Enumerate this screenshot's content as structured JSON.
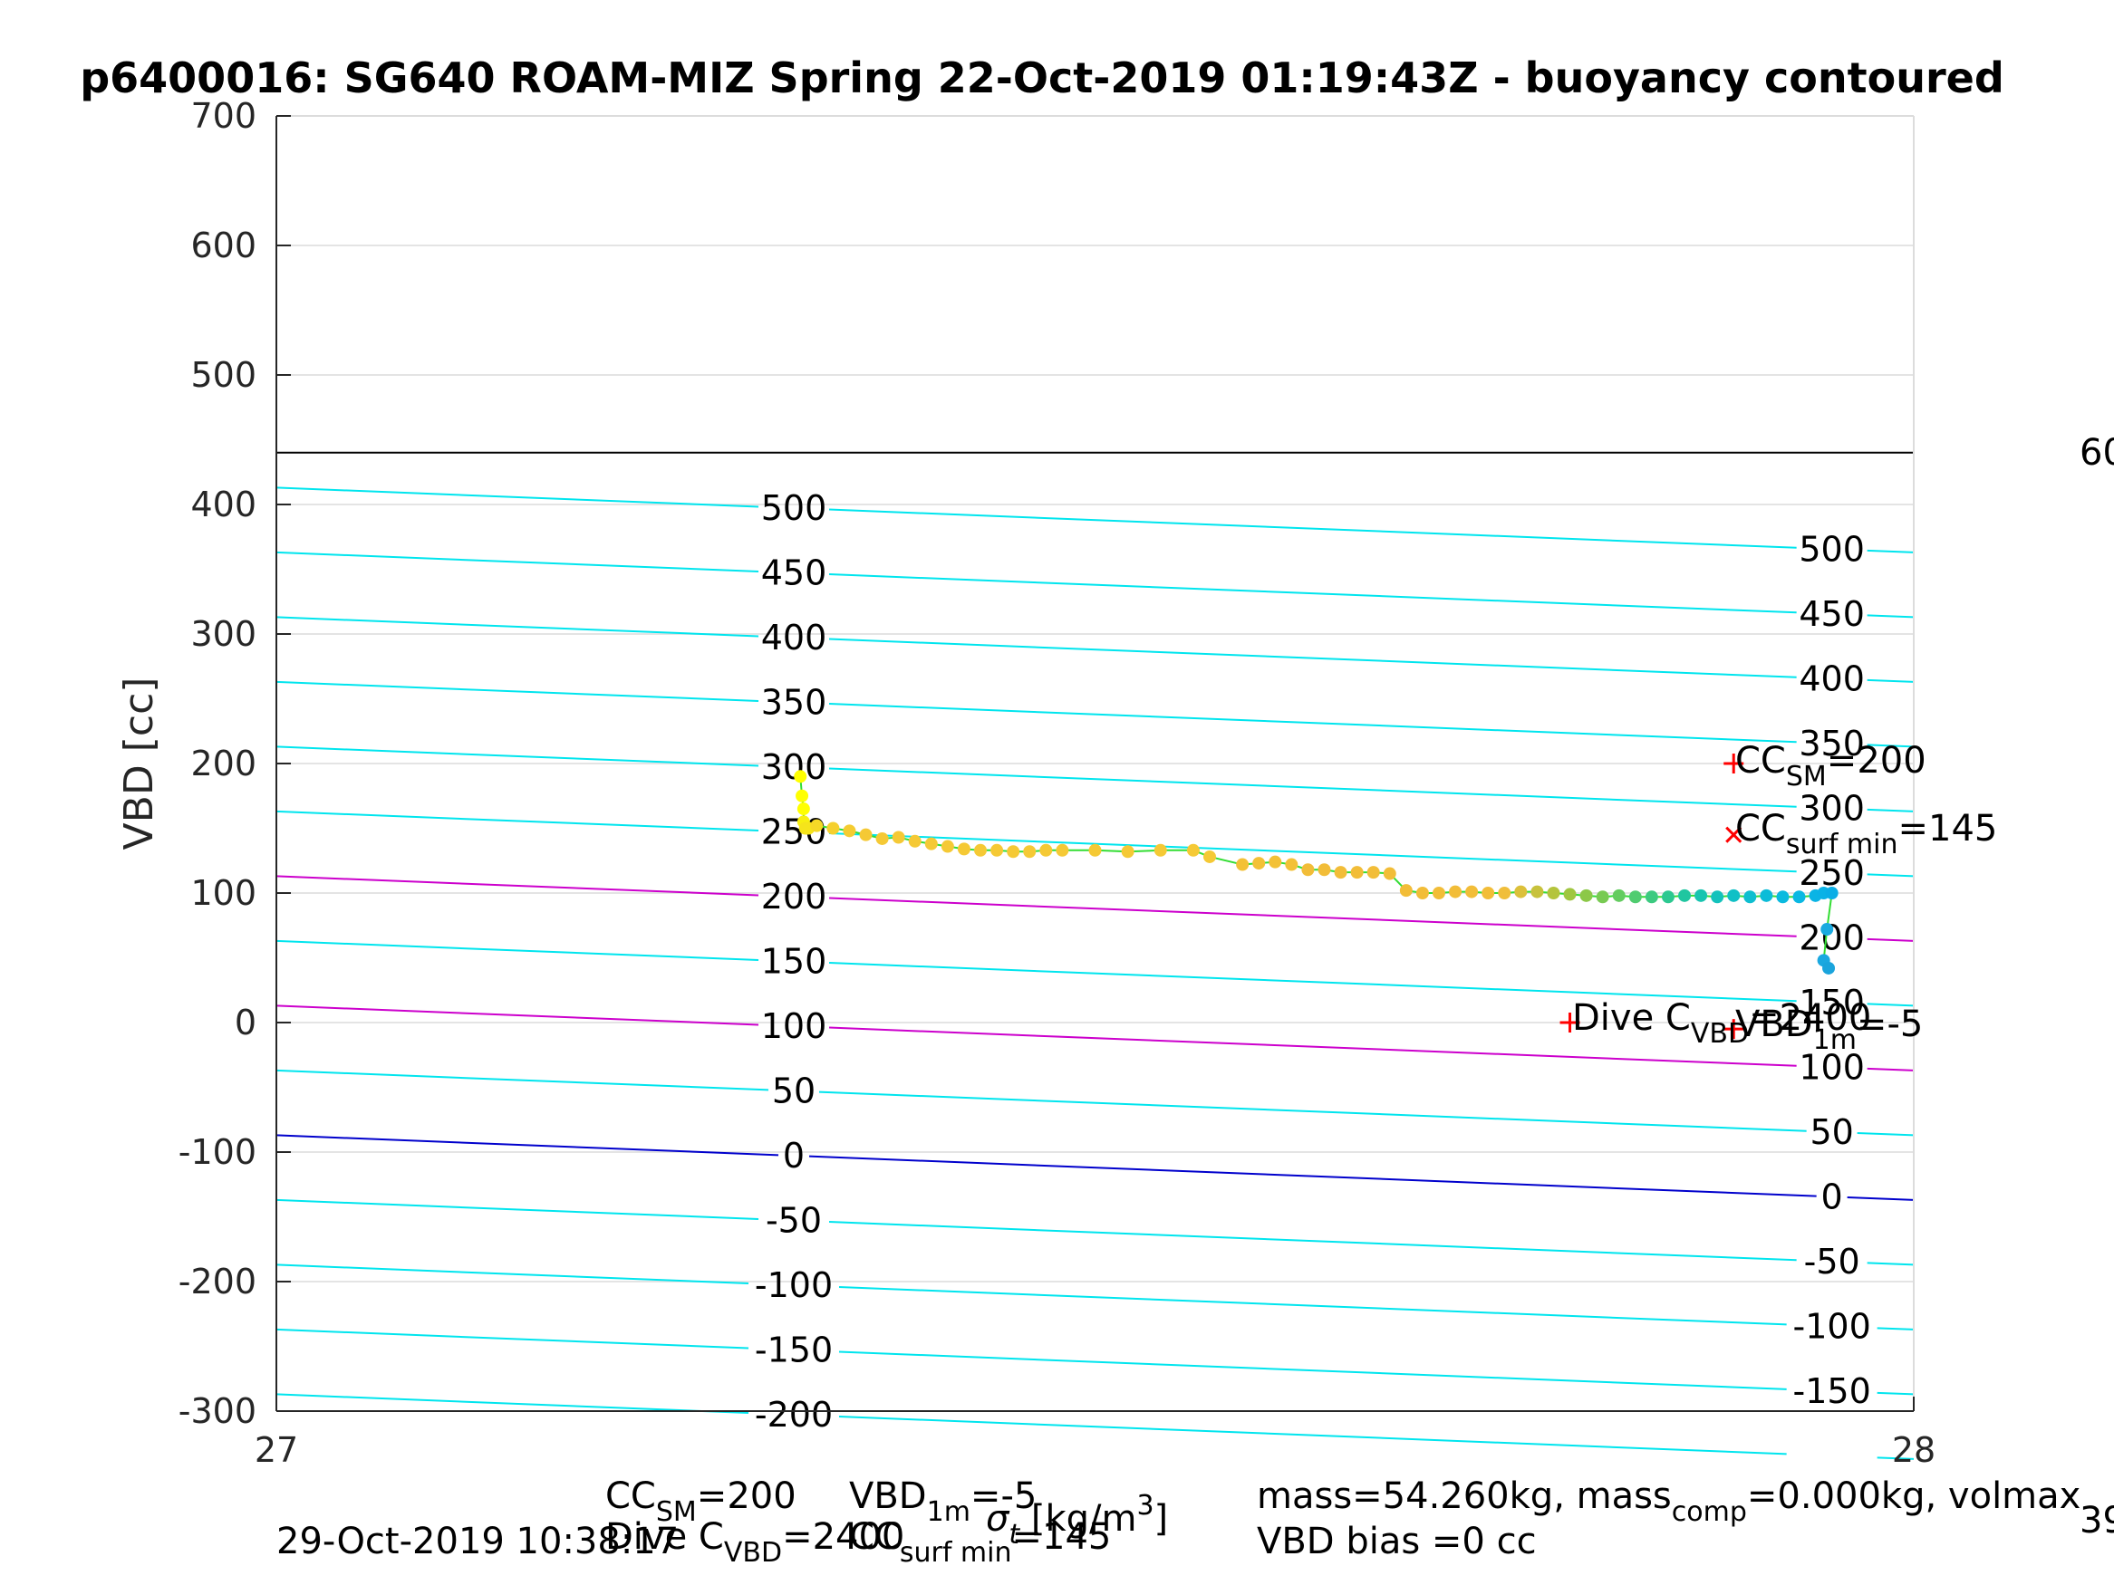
{
  "chart_data": {
    "type": "scatter",
    "title": "p6400016: SG640 ROAM-MIZ Spring 22-Oct-2019 01:19:43Z - buoyancy contoured",
    "ylabel": "VBD [cc]",
    "xlim": [
      27,
      28
    ],
    "ylim": [
      -300,
      700
    ],
    "x_ticks": [
      "27",
      "28"
    ],
    "y_ticks": [
      "-300",
      "-200",
      "-100",
      "0",
      "100",
      "200",
      "300",
      "400",
      "500",
      "600",
      "700"
    ],
    "grid": true,
    "horizontal_line": {
      "y": 440,
      "color": "#000000"
    },
    "contours": {
      "slope_per_unit_x": -50,
      "levels": [
        {
          "level": 500,
          "y_at_x27": 413
        },
        {
          "level": 450,
          "y_at_x27": 363
        },
        {
          "level": 400,
          "y_at_x27": 313
        },
        {
          "level": 350,
          "y_at_x27": 263
        },
        {
          "level": 300,
          "y_at_x27": 213
        },
        {
          "level": 250,
          "y_at_x27": 163
        },
        {
          "level": 200,
          "y_at_x27": 113,
          "color": "#cc00cc"
        },
        {
          "level": 150,
          "y_at_x27": 63
        },
        {
          "level": 100,
          "y_at_x27": 13,
          "color": "#cc00cc"
        },
        {
          "level": 50,
          "y_at_x27": -37
        },
        {
          "level": 0,
          "y_at_x27": -87,
          "color": "#0000cc"
        },
        {
          "level": -50,
          "y_at_x27": -137
        },
        {
          "level": -100,
          "y_at_x27": -187
        },
        {
          "level": -150,
          "y_at_x27": -237
        },
        {
          "level": -200,
          "y_at_x27": -287
        }
      ],
      "default_color": "#00e5ee",
      "left_label_x": 27.316,
      "right_label_x": 27.95
    },
    "series": [
      {
        "x": [
          27.32,
          27.321,
          27.322,
          27.322,
          27.323,
          27.325,
          27.33,
          27.34,
          27.35,
          27.36,
          27.37,
          27.38,
          27.39,
          27.4,
          27.41,
          27.42,
          27.43,
          27.44,
          27.45,
          27.46,
          27.47,
          27.48,
          27.5,
          27.52,
          27.54,
          27.56,
          27.57,
          27.59,
          27.6,
          27.61,
          27.62,
          27.63,
          27.64,
          27.65,
          27.66,
          27.67,
          27.68,
          27.69,
          27.7,
          27.71,
          27.72,
          27.73,
          27.74,
          27.75,
          27.76,
          27.77,
          27.78,
          27.79,
          27.8,
          27.81,
          27.82,
          27.83,
          27.84,
          27.85,
          27.86,
          27.87,
          27.88,
          27.89,
          27.9,
          27.91,
          27.92,
          27.93,
          27.94,
          27.945,
          27.95,
          27.947,
          27.945,
          27.948
        ],
        "y": [
          190,
          175,
          165,
          155,
          150,
          150,
          152,
          150,
          148,
          145,
          142,
          143,
          140,
          138,
          136,
          134,
          133,
          133,
          132,
          132,
          133,
          133,
          133,
          132,
          133,
          133,
          128,
          122,
          123,
          124,
          122,
          118,
          118,
          116,
          116,
          116,
          115,
          102,
          100,
          100,
          101,
          101,
          100,
          100,
          101,
          101,
          100,
          99,
          98,
          97,
          98,
          97,
          97,
          97,
          98,
          98,
          97,
          98,
          97,
          98,
          97,
          97,
          98,
          100,
          100,
          72,
          48,
          42
        ],
        "colors": [
          "#ffff00",
          "#ffff00",
          "#ffff00",
          "#f7ef10",
          "#f5e41b",
          "#f5e41b",
          "#f5d827",
          "#f5d02e",
          "#f5cc31",
          "#f5c935",
          "#f5c935",
          "#f5c935",
          "#f5c935",
          "#f5c935",
          "#f5c935",
          "#f5c935",
          "#f5c935",
          "#f5c935",
          "#f5c935",
          "#f5c935",
          "#f5c935",
          "#f5c935",
          "#f5c935",
          "#f5c935",
          "#f5c935",
          "#f5c935",
          "#f5c935",
          "#f3c136",
          "#f3c136",
          "#f3c136",
          "#f3c136",
          "#f2bd38",
          "#f2bd38",
          "#f2bd38",
          "#f2bd38",
          "#f2bd38",
          "#f2bd38",
          "#f2bd38",
          "#f2bd38",
          "#f2bd38",
          "#f2bd38",
          "#f2bd38",
          "#f2bd38",
          "#f0be3a",
          "#dcc03a",
          "#c8c23c",
          "#b4c43c",
          "#a0c640",
          "#8cc848",
          "#78ca52",
          "#64cc60",
          "#50cc70",
          "#3cca80",
          "#2cc890",
          "#20c6a0",
          "#18c4b0",
          "#14c2bc",
          "#10c0c6",
          "#0ebed0",
          "#0cbcd8",
          "#0abadf",
          "#0ab8e3",
          "#0ab4e5",
          "#0ab2e6",
          "#0aaee6",
          "#1aaae0",
          "#1aa8e0",
          "#1aa4dc"
        ]
      }
    ],
    "markers": [
      {
        "type": "plus",
        "x": 27.79,
        "y": 0,
        "color": "#ff0000"
      },
      {
        "type": "plus",
        "x": 27.89,
        "y": 200,
        "color": "#ff0000"
      },
      {
        "type": "x",
        "x": 27.89,
        "y": 145,
        "color": "#ff0000"
      },
      {
        "type": "plus",
        "x": 27.89,
        "y": -5,
        "color": "#ff0000"
      }
    ],
    "annotations": {
      "cc_sm_plot": {
        "main": "CC",
        "sub": "SM",
        "rest": "=200"
      },
      "cc_surf_plot": {
        "main": "CC",
        "sub": "surf min",
        "rest": "=145"
      },
      "dive_c_plot": {
        "main": "Dive C",
        "sub": "VBD",
        "rest": "=2400"
      },
      "vbd_1m_plot": {
        "main": "VBD",
        "sub": "1m",
        "rest": "=-5"
      },
      "right_edge_top": "60",
      "right_edge_bottom": "39",
      "cc_sm_footer": {
        "main": "CC",
        "sub": "SM",
        "rest": "=200"
      },
      "dive_c_footer": {
        "main": "Dive C",
        "sub": "VBD",
        "rest": "=2400"
      },
      "vbd_1m_footer": {
        "main": "VBD",
        "sub": "1m",
        "rest": "=-5"
      },
      "cc_surf_footer": {
        "main": "CC",
        "sub": "surf min",
        "rest": "=145"
      },
      "xlabel_sigma": {
        "sym": "σ",
        "sub": "t",
        "unit_pre": " [kg/m",
        "unit_sup": "3",
        "unit_post": "]"
      },
      "mass_line": {
        "pre": "mass=54.260kg, mass",
        "sub": "comp",
        "post": "=0.000kg, volmax"
      },
      "vbd_bias": "VBD bias =0 cc",
      "timestamp": "29-Oct-2019 10:38:17"
    }
  }
}
